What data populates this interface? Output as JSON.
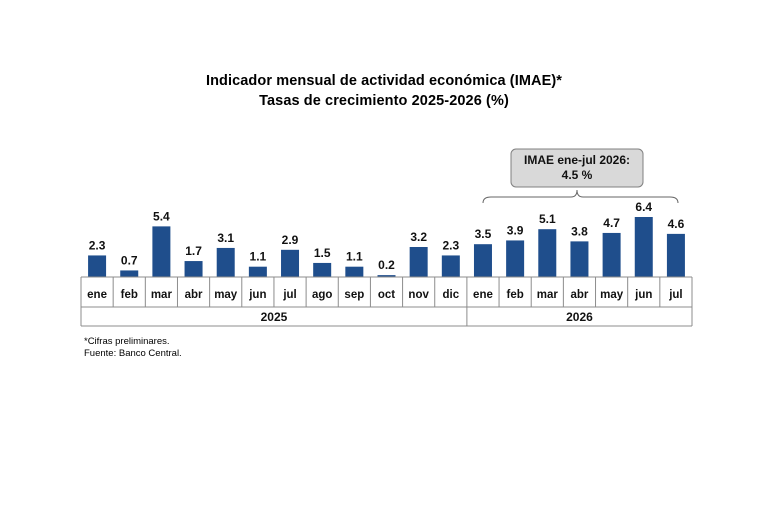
{
  "chart_data": {
    "type": "bar",
    "title": "Indicador mensual de actividad económica (IMAE)*",
    "subtitle": "Tasas de crecimiento 2025-2026 (%)",
    "categories": [
      "ene",
      "feb",
      "mar",
      "abr",
      "may",
      "jun",
      "jul",
      "ago",
      "sep",
      "oct",
      "nov",
      "dic",
      "ene",
      "feb",
      "mar",
      "abr",
      "may",
      "jun",
      "jul"
    ],
    "values": [
      2.3,
      0.7,
      5.4,
      1.7,
      3.1,
      1.1,
      2.9,
      1.5,
      1.1,
      0.2,
      3.2,
      2.3,
      3.5,
      3.9,
      5.1,
      3.8,
      4.7,
      6.4,
      4.6
    ],
    "value_labels": [
      "2.3",
      "0.7",
      "5.4",
      "1.7",
      "3.1",
      "1.1",
      "2.9",
      "1.5",
      "1.1",
      "0.2",
      "3.2",
      "2.3",
      "3.5",
      "3.9",
      "5.1",
      "3.8",
      "4.7",
      "6.4",
      "4.6"
    ],
    "groups": [
      {
        "label": "2025",
        "count": 12
      },
      {
        "label": "2026",
        "count": 7
      }
    ],
    "ylim": [
      0,
      6.4
    ],
    "bar_color": "#1f4e8c",
    "grid": false,
    "annotation": {
      "line1": "IMAE ene-jul 2026:",
      "line2": "4.5 %"
    }
  },
  "footnotes": {
    "note1": "*Cifras preliminares.",
    "note2": "Fuente: Banco Central."
  }
}
